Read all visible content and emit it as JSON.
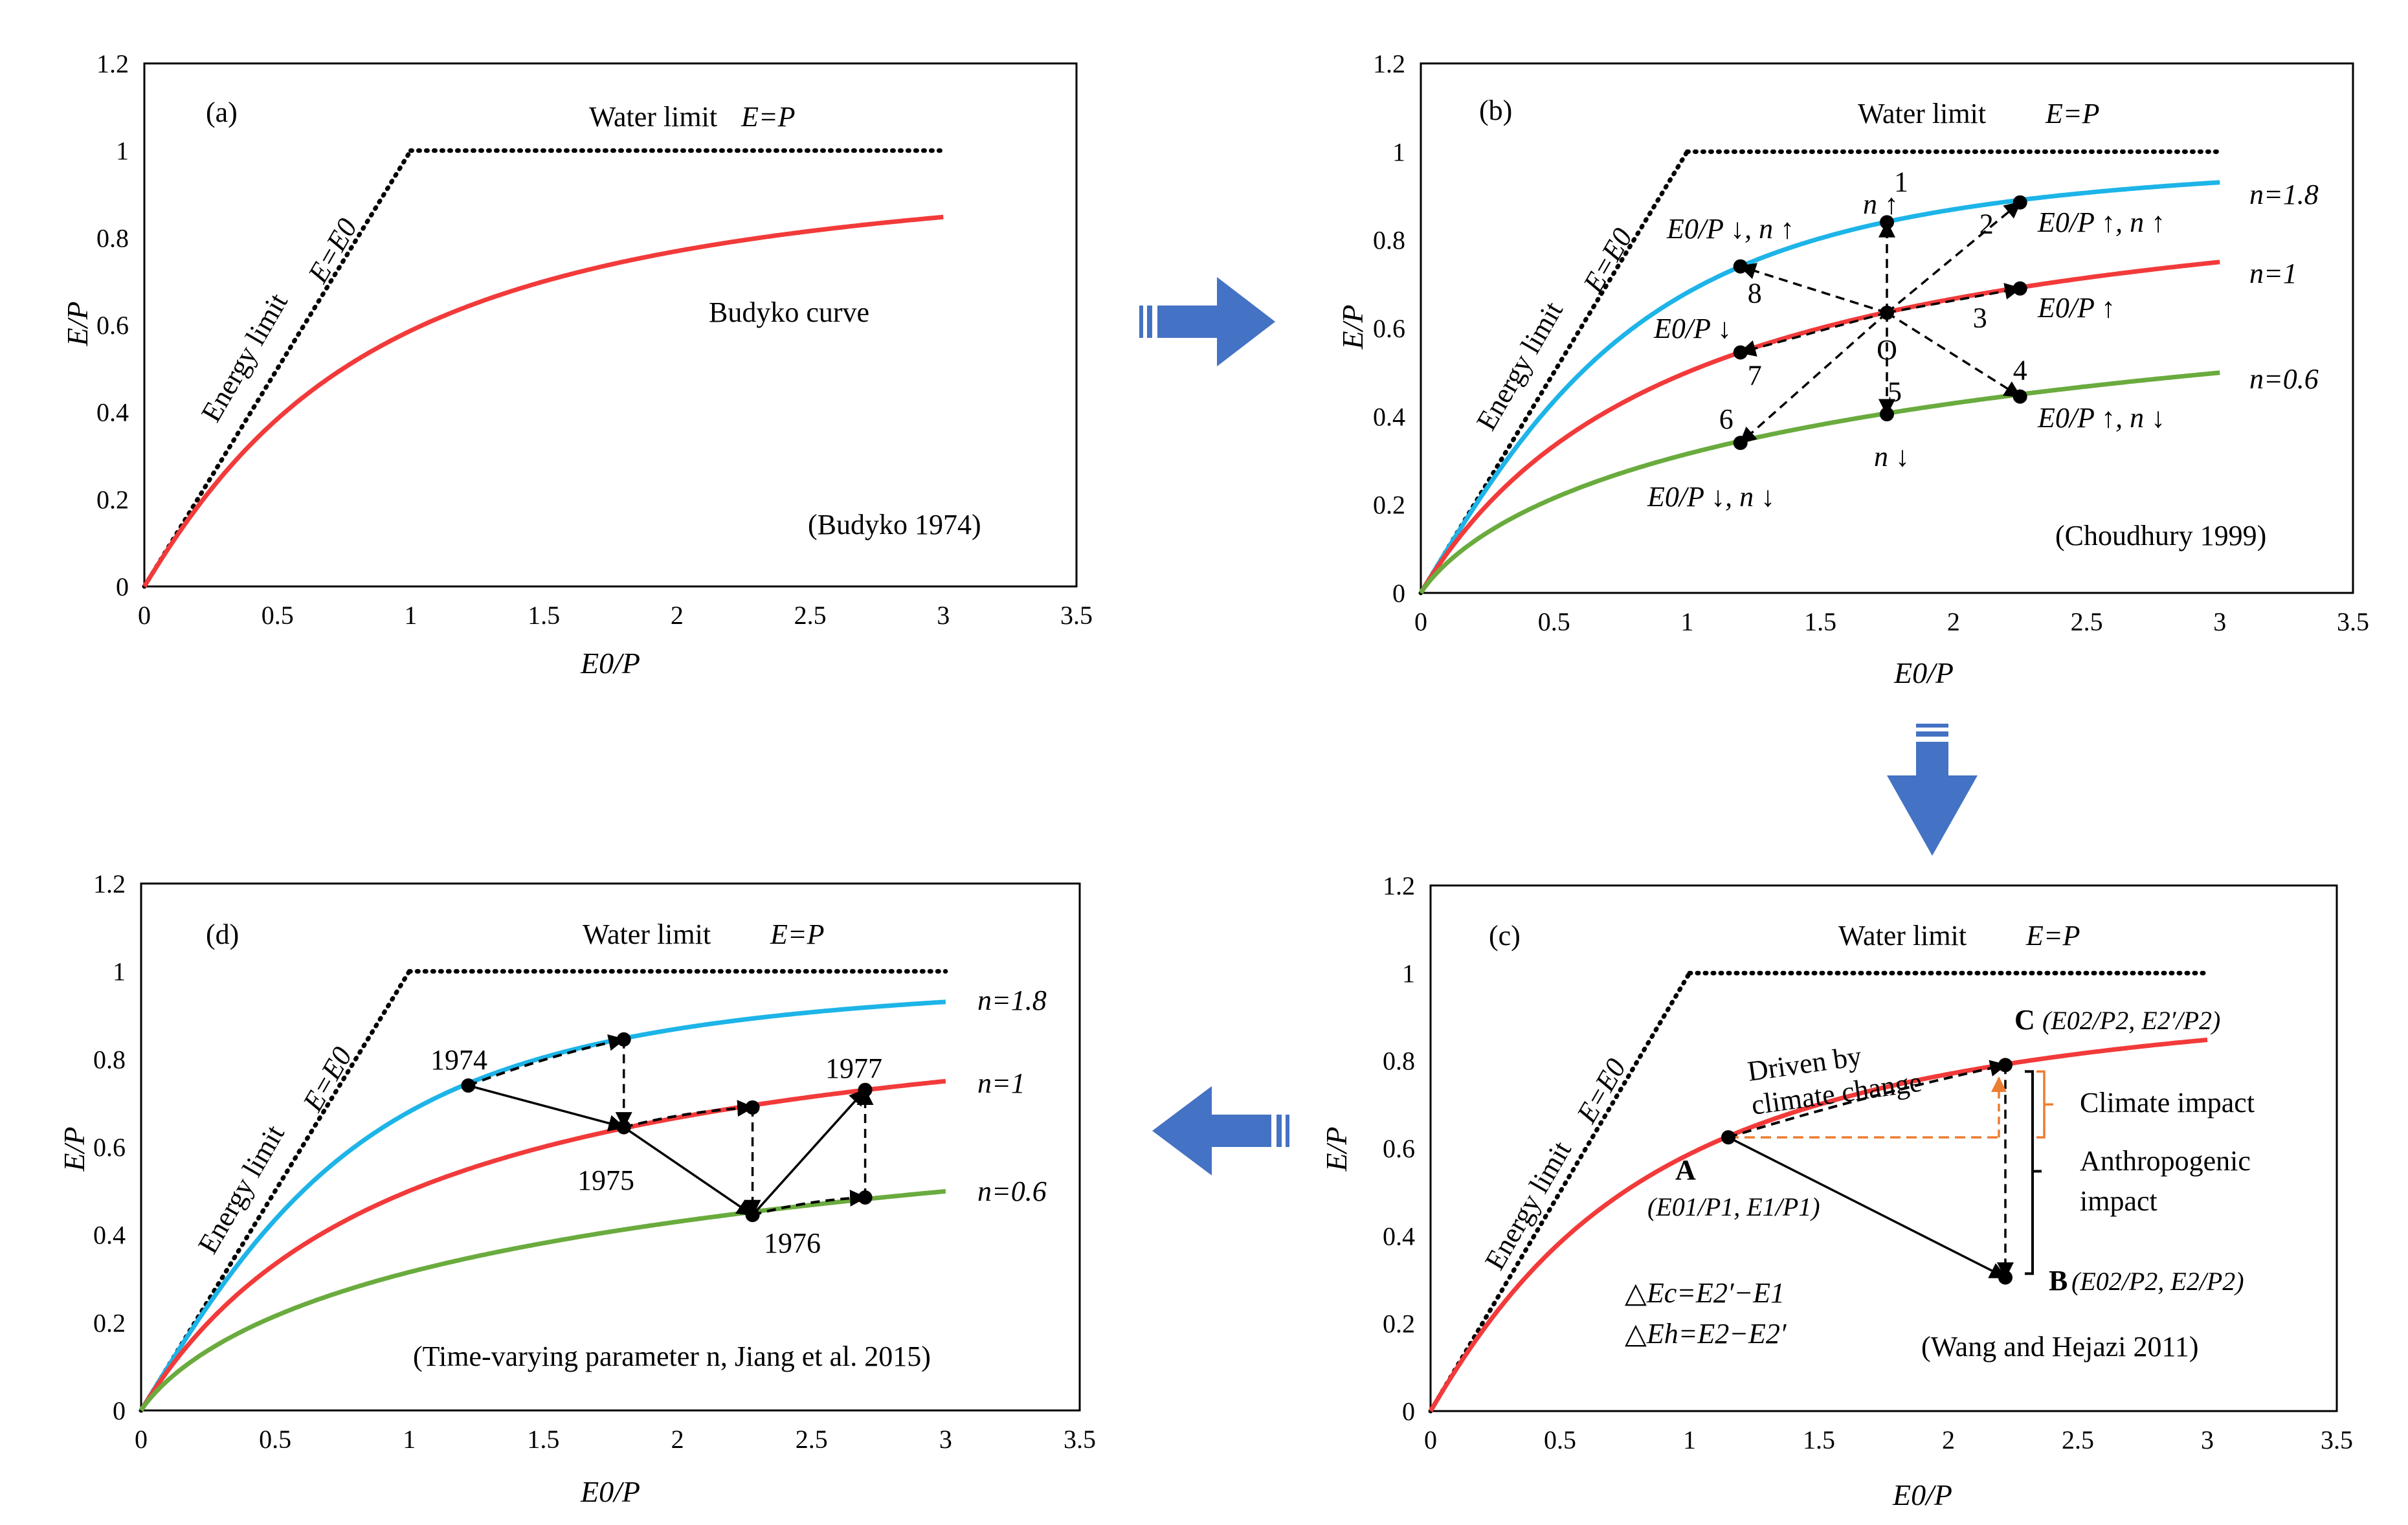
{
  "chart_data": [
    {
      "id": "a",
      "type": "line",
      "panel_label": "(a)",
      "xlabel": "E0/P",
      "ylabel": "E/P",
      "xlim": [
        0,
        3.5
      ],
      "ylim": [
        0,
        1.2
      ],
      "xticks": [
        "0",
        "0.5",
        "1",
        "1.5",
        "2",
        "2.5",
        "3",
        "3.5"
      ],
      "yticks": [
        "0",
        "0.2",
        "0.4",
        "0.6",
        "0.8",
        "1",
        "1.2"
      ],
      "water_limit_label": "Water limit",
      "water_limit_eq": "E=P",
      "energy_limit_label": "Energy limit",
      "energy_limit_eq": "E=E0",
      "curves": [
        {
          "name": "Budyko curve",
          "color": "#f23a3a",
          "n": 1.3
        }
      ],
      "curve_label": "Budyko curve",
      "citation": "(Budyko 1974)"
    },
    {
      "id": "b",
      "type": "line",
      "panel_label": "(b)",
      "xlabel": "E0/P",
      "ylabel": "E/P",
      "xlim": [
        0,
        3.5
      ],
      "ylim": [
        0,
        1.2
      ],
      "xticks": [
        "0",
        "0.5",
        "1",
        "1.5",
        "2",
        "2.5",
        "3",
        "3.5"
      ],
      "yticks": [
        "0",
        "0.2",
        "0.4",
        "0.6",
        "0.8",
        "1",
        "1.2"
      ],
      "water_limit_label": "Water limit",
      "water_limit_eq": "E=P",
      "energy_limit_label": "Energy limit",
      "energy_limit_eq": "E=E0",
      "curves": [
        {
          "name": "n=1.8",
          "color": "#1db4e8",
          "n": 1.8
        },
        {
          "name": "n=1",
          "color": "#f23a3a",
          "n": 1.0
        },
        {
          "name": "n=0.6",
          "color": "#6aab3e",
          "n": 0.6
        }
      ],
      "points": [
        {
          "label": "O",
          "x": 1.75,
          "y": 0.635
        },
        {
          "label": "1",
          "x": 1.75,
          "y": 0.84
        },
        {
          "label": "2",
          "x": 2.25,
          "y": 0.885
        },
        {
          "label": "3",
          "x": 2.25,
          "y": 0.69
        },
        {
          "label": "4",
          "x": 2.25,
          "y": 0.445
        },
        {
          "label": "5",
          "x": 1.75,
          "y": 0.405
        },
        {
          "label": "6",
          "x": 1.2,
          "y": 0.34
        },
        {
          "label": "7",
          "x": 1.2,
          "y": 0.545
        },
        {
          "label": "8",
          "x": 1.2,
          "y": 0.74
        }
      ],
      "annotations": {
        "n_up": "n ↑",
        "n_down": "n ↓",
        "e0p_down_n_up": "E0/P ↓, n ↑",
        "e0p_up_n_up": "E0/P ↑, n ↑",
        "e0p_down": "E0/P ↓",
        "e0p_up": "E0/P ↑",
        "e0p_up_n_down": "E0/P ↑, n ↓",
        "e0p_down_n_down": "E0/P ↓, n ↓"
      },
      "curve_labels": [
        "n=1.8",
        "n=1",
        "n=0.6"
      ],
      "citation": "(Choudhury 1999)"
    },
    {
      "id": "c",
      "type": "line",
      "panel_label": "(c)",
      "xlabel": "E0/P",
      "ylabel": "E/P",
      "xlim": [
        0,
        3.5
      ],
      "ylim": [
        0,
        1.2
      ],
      "xticks": [
        "0",
        "0.5",
        "1",
        "1.5",
        "2",
        "2.5",
        "3",
        "3.5"
      ],
      "yticks": [
        "0",
        "0.2",
        "0.4",
        "0.6",
        "0.8",
        "1",
        "1.2"
      ],
      "water_limit_label": "Water limit",
      "water_limit_eq": "E=P",
      "energy_limit_label": "Energy limit",
      "energy_limit_eq": "E=E0",
      "curves": [
        {
          "name": "Budyko curve",
          "color": "#f23a3a",
          "n": 1.3
        }
      ],
      "points": [
        {
          "label": "A",
          "x": 1.15,
          "y": 0.625
        },
        {
          "label": "B",
          "x": 2.22,
          "y": 0.305
        },
        {
          "label": "C",
          "x": 2.22,
          "y": 0.79
        }
      ],
      "annotations": {
        "driven_1": "Driven by",
        "driven_2": "climate change",
        "point_a_label": "A",
        "point_a_coords": "(E01/P1, E1/P1)",
        "point_b_label": "B",
        "point_b_coords": "(E02/P2, E2/P2)",
        "point_c_label": "C",
        "point_c_coords": "(E02/P2, E2′/P2)",
        "climate_impact": "Climate impact",
        "anthropogenic_1": "Anthropogenic",
        "anthropogenic_2": "impact",
        "delta_c": "△Ec=E2′−E1",
        "delta_h": "△Eh=E2−E2′"
      },
      "citation": "(Wang and Hejazi 2011)"
    },
    {
      "id": "d",
      "type": "line",
      "panel_label": "(d)",
      "xlabel": "E0/P",
      "ylabel": "E/P",
      "xlim": [
        0,
        3.5
      ],
      "ylim": [
        0,
        1.2
      ],
      "xticks": [
        "0",
        "0.5",
        "1",
        "1.5",
        "2",
        "2.5",
        "3",
        "3.5"
      ],
      "yticks": [
        "0",
        "0.2",
        "0.4",
        "0.6",
        "0.8",
        "1",
        "1.2"
      ],
      "water_limit_label": "Water limit",
      "water_limit_eq": "E=P",
      "energy_limit_label": "Energy limit",
      "energy_limit_eq": "E=E0",
      "curves": [
        {
          "name": "n=1.8",
          "color": "#1db4e8",
          "n": 1.8
        },
        {
          "name": "n=1",
          "color": "#f23a3a",
          "n": 1.0
        },
        {
          "name": "n=0.6",
          "color": "#6aab3e",
          "n": 0.6
        }
      ],
      "points": [
        {
          "label": "1974",
          "x": 1.22,
          "y": 0.74
        },
        {
          "label": "",
          "x": 1.8,
          "y": 0.845
        },
        {
          "label": "1975",
          "x": 1.8,
          "y": 0.645
        },
        {
          "label": "",
          "x": 2.28,
          "y": 0.69
        },
        {
          "label": "1976",
          "x": 2.28,
          "y": 0.445
        },
        {
          "label": "",
          "x": 2.7,
          "y": 0.485
        },
        {
          "label": "1977",
          "x": 2.7,
          "y": 0.73
        }
      ],
      "year_labels": [
        "1974",
        "1975",
        "1976",
        "1977"
      ],
      "curve_labels": [
        "n=1.8",
        "n=1",
        "n=0.6"
      ],
      "citation": "(Time-varying parameter n, Jiang et al. 2015)"
    }
  ],
  "colors": {
    "arrow_fill": "#4472c4",
    "blue_curve": "#1db4e8",
    "red_curve": "#f23a3a",
    "green_curve": "#6aab3e",
    "orange": "#ed7d31"
  }
}
